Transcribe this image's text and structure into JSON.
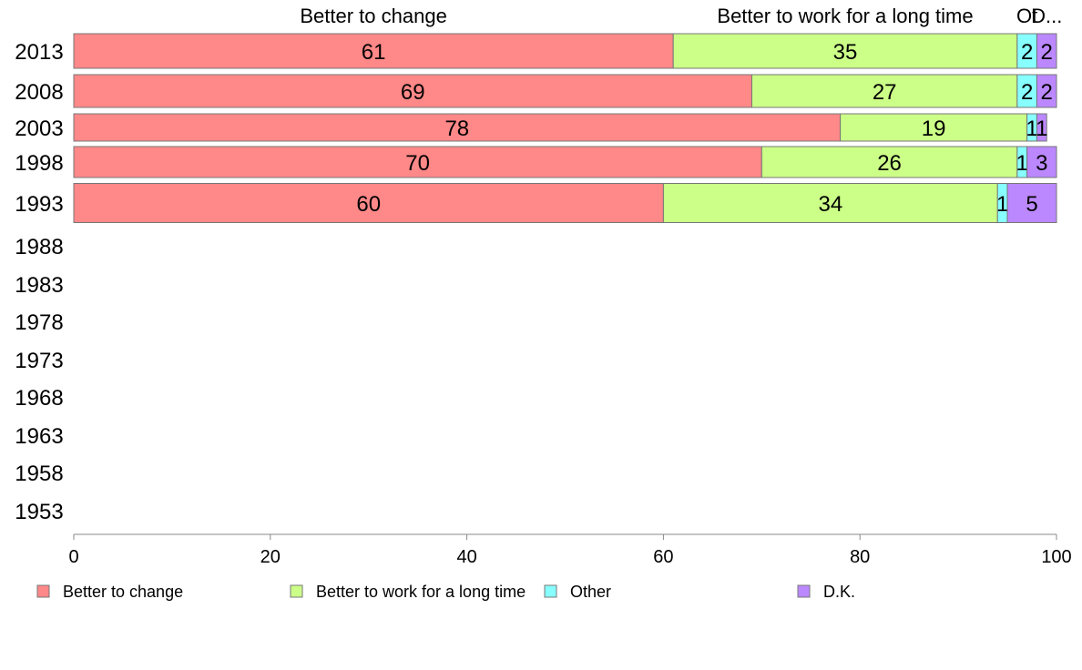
{
  "chart_data": {
    "type": "bar",
    "orientation": "horizontal",
    "stacked": true,
    "categories": [
      "2013",
      "2008",
      "2003",
      "1998",
      "1993",
      "1988",
      "1983",
      "1978",
      "1973",
      "1968",
      "1963",
      "1958",
      "1953"
    ],
    "series": [
      {
        "name": "Better to change",
        "color": "#ff8888",
        "values": [
          61,
          69,
          78,
          70,
          60,
          null,
          null,
          null,
          null,
          null,
          null,
          null,
          null
        ]
      },
      {
        "name": "Better to work for a long time",
        "color": "#ccff88",
        "values": [
          35,
          27,
          19,
          26,
          34,
          null,
          null,
          null,
          null,
          null,
          null,
          null,
          null
        ]
      },
      {
        "name": "Other",
        "color": "#88ffff",
        "values": [
          2,
          2,
          1,
          1,
          1,
          null,
          null,
          null,
          null,
          null,
          null,
          null,
          null
        ]
      },
      {
        "name": "D.K.",
        "color": "#bb88ff",
        "values": [
          2,
          2,
          1,
          3,
          5,
          null,
          null,
          null,
          null,
          null,
          null,
          null,
          null
        ]
      }
    ],
    "top_labels": [
      "Better to change",
      "Better to work for a long time",
      "Ot",
      "D..."
    ],
    "xlim": [
      0,
      100
    ],
    "xticks": [
      0,
      20,
      40,
      60,
      80,
      100
    ],
    "grid": false,
    "legend_position": "bottom"
  }
}
